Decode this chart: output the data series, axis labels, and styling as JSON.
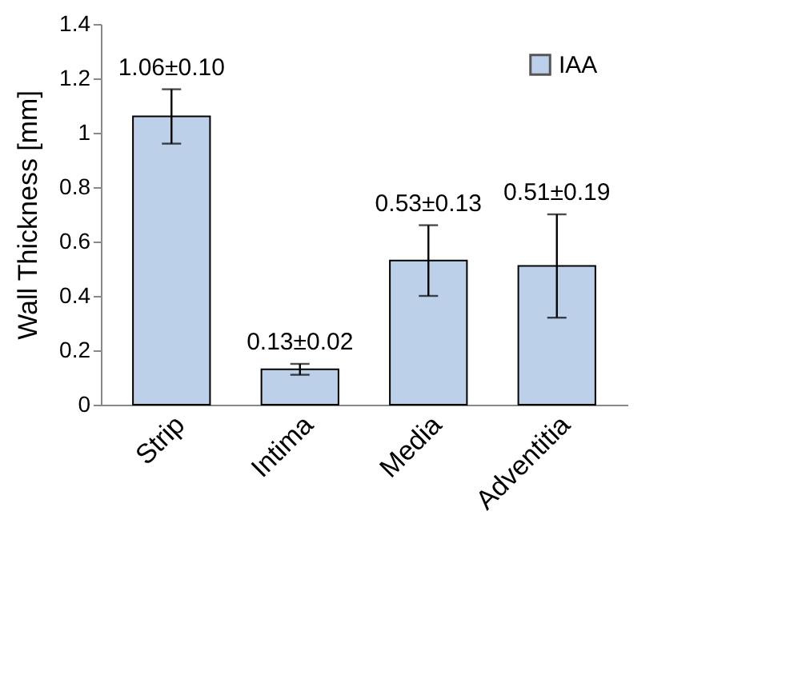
{
  "chart_data": {
    "type": "bar",
    "ylabel": "Wall Thickness [mm]",
    "categories": [
      "Strip",
      "Intima",
      "Media",
      "Adventitia"
    ],
    "series": [
      {
        "name": "IAA",
        "color": "#bcd0ea",
        "values": [
          1.06,
          0.13,
          0.53,
          0.51
        ],
        "errors": [
          0.1,
          0.02,
          0.13,
          0.19
        ],
        "value_labels": [
          "1.06±0.10",
          "0.13±0.02",
          "0.53±0.13",
          "0.51±0.19"
        ]
      }
    ],
    "ylim": [
      0,
      1.4
    ],
    "yticks": [
      0,
      0.2,
      0.4,
      0.6,
      0.8,
      1,
      1.2,
      1.4
    ],
    "grid": false,
    "legend": "top right"
  }
}
